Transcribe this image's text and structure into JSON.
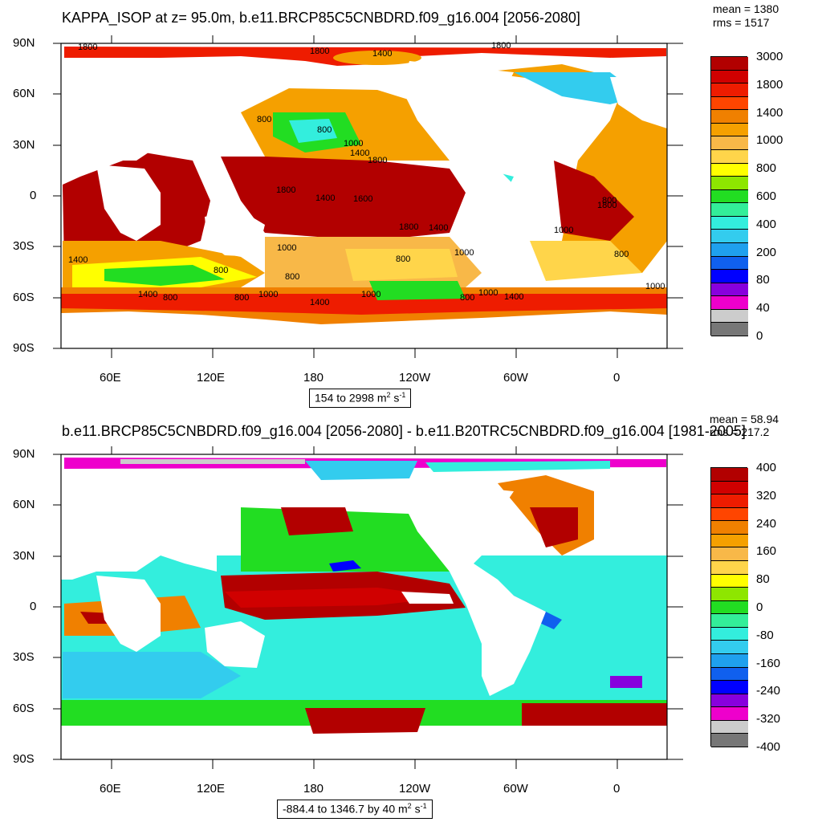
{
  "panels": [
    {
      "title": "KAPPA_ISOP at z=  95.0m, b.e11.BRCP85C5CNBDRD.f09_g16.004 [2056-2080]",
      "mean": "mean = 1380",
      "rms": "rms = 1517",
      "range_text": "154 to 2998",
      "units_main": " m",
      "units_sup1": "2",
      "units_mid": " s",
      "units_sup2": "-1",
      "colorbar_labels": [
        "3000",
        "1800",
        "1400",
        "1000",
        "800",
        "600",
        "400",
        "200",
        "80",
        "40",
        "0"
      ],
      "colorbar_colors": [
        "#b20000",
        "#d00000",
        "#ee1c00",
        "#ff4500",
        "#f08000",
        "#f5a000",
        "#f8b848",
        "#ffd54a",
        "#ffff00",
        "#8ee600",
        "#22dd22",
        "#33ee99",
        "#33eedd",
        "#33ccee",
        "#1fa0ee",
        "#1060ee",
        "#0000ff",
        "#8800dd",
        "#ee00cc",
        "#cccccc",
        "#777777"
      ],
      "contour_labels": [
        "1800",
        "1800",
        "1400",
        "1800",
        "800",
        "800",
        "1000",
        "1400",
        "1800",
        "1800",
        "1400",
        "1600",
        "1800",
        "1400",
        "1000",
        "1000",
        "800",
        "800",
        "1400",
        "800",
        "1000",
        "800",
        "1000",
        "1400",
        "1800",
        "1400",
        "800",
        "1000",
        "800",
        "1400",
        "1000",
        "800",
        "800",
        "1000"
      ]
    },
    {
      "title": "b.e11.BRCP85C5CNBDRD.f09_g16.004 [2056-2080] - b.e11.B20TRC5CNBDRD.f09_g16.004 [1981-2005]",
      "mean": "mean = 58.94",
      "rms": "rms = 217.2",
      "range_text": "-884.4 to 1346.7 by 40",
      "units_main": " m",
      "units_sup1": "2",
      "units_mid": " s",
      "units_sup2": "-1",
      "colorbar_labels": [
        "400",
        "320",
        "240",
        "160",
        "80",
        "0",
        "-80",
        "-160",
        "-240",
        "-320",
        "-400"
      ],
      "colorbar_colors": [
        "#b20000",
        "#d00000",
        "#ee1c00",
        "#ff4500",
        "#f08000",
        "#f5a000",
        "#f8b848",
        "#ffd54a",
        "#ffff00",
        "#8ee600",
        "#22dd22",
        "#33ee99",
        "#33eedd",
        "#33ccee",
        "#1fa0ee",
        "#1060ee",
        "#0000ff",
        "#8800dd",
        "#ee00cc",
        "#cccccc",
        "#777777"
      ]
    }
  ],
  "lat_ticks": [
    "90N",
    "60N",
    "30N",
    "0",
    "30S",
    "60S",
    "90S"
  ],
  "lon_ticks": [
    "60E",
    "120E",
    "180",
    "120W",
    "60W",
    "0"
  ]
}
